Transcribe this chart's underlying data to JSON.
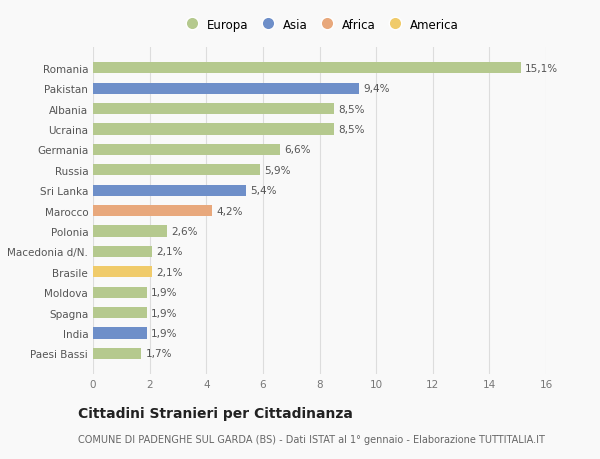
{
  "countries": [
    "Romania",
    "Pakistan",
    "Albania",
    "Ucraina",
    "Germania",
    "Russia",
    "Sri Lanka",
    "Marocco",
    "Polonia",
    "Macedonia d/N.",
    "Brasile",
    "Moldova",
    "Spagna",
    "India",
    "Paesi Bassi"
  ],
  "values": [
    15.1,
    9.4,
    8.5,
    8.5,
    6.6,
    5.9,
    5.4,
    4.2,
    2.6,
    2.1,
    2.1,
    1.9,
    1.9,
    1.9,
    1.7
  ],
  "labels": [
    "15,1%",
    "9,4%",
    "8,5%",
    "8,5%",
    "6,6%",
    "5,9%",
    "5,4%",
    "4,2%",
    "2,6%",
    "2,1%",
    "2,1%",
    "1,9%",
    "1,9%",
    "1,9%",
    "1,7%"
  ],
  "continents": [
    "Europa",
    "Asia",
    "Europa",
    "Europa",
    "Europa",
    "Europa",
    "Asia",
    "Africa",
    "Europa",
    "Europa",
    "America",
    "Europa",
    "Europa",
    "Asia",
    "Europa"
  ],
  "continent_colors": {
    "Europa": "#b5c98e",
    "Asia": "#6e8fc9",
    "Africa": "#e8a87c",
    "America": "#f0cb6a"
  },
  "legend_order": [
    "Europa",
    "Asia",
    "Africa",
    "America"
  ],
  "xlim": [
    0,
    16
  ],
  "xticks": [
    0,
    2,
    4,
    6,
    8,
    10,
    12,
    14,
    16
  ],
  "title": "Cittadini Stranieri per Cittadinanza",
  "subtitle": "COMUNE DI PADENGHE SUL GARDA (BS) - Dati ISTAT al 1° gennaio - Elaborazione TUTTITALIA.IT",
  "background_color": "#f9f9f9",
  "grid_color": "#dddddd",
  "bar_height": 0.55,
  "label_fontsize": 7.5,
  "tick_fontsize": 7.5,
  "title_fontsize": 10,
  "subtitle_fontsize": 7
}
